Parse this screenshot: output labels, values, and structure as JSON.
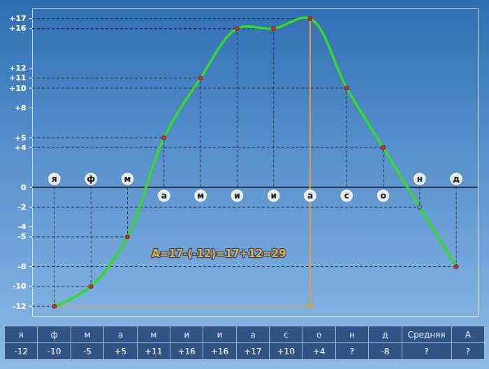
{
  "chart_data": {
    "type": "line",
    "categories": [
      "я",
      "ф",
      "м",
      "а",
      "м",
      "и",
      "и",
      "а",
      "с",
      "о",
      "н",
      "д"
    ],
    "series": [
      {
        "color": "#33dd22",
        "marker": "circle",
        "line_style": "solid",
        "colors": [
          "#d0312d",
          "#d0312d",
          "#d0312d",
          "#d0312d",
          "#d0312d",
          "#d0312d",
          "#d0312d",
          "#d0312d",
          "#d0312d",
          "#d0312d",
          "#3fa9e0",
          "#d0312d"
        ],
        "values": [
          -12,
          -10,
          -5,
          5,
          11,
          16,
          16,
          17,
          10,
          4,
          -2,
          -8
        ]
      }
    ],
    "ylim": [
      -13,
      18
    ],
    "yticks": [
      {
        "value": 17,
        "label": "+17"
      },
      {
        "value": 16,
        "label": "+16"
      },
      {
        "value": 12,
        "label": "+12"
      },
      {
        "value": 11,
        "label": "+11"
      },
      {
        "value": 10,
        "label": "+10"
      },
      {
        "value": 8,
        "label": "+8"
      },
      {
        "value": 5,
        "label": "+5"
      },
      {
        "value": 4,
        "label": "+4"
      },
      0,
      -2,
      -4,
      -5,
      -8,
      -10,
      -12
    ],
    "grid": false,
    "annotations": [
      {
        "text": "A=17-(-12)=17+12=29",
        "x": 4.5,
        "y": -6.7
      }
    ]
  },
  "table": {
    "header": [
      "я",
      "ф",
      "м",
      "а",
      "м",
      "и",
      "и",
      "а",
      "с",
      "о",
      "н",
      "д",
      "Средняя",
      "А"
    ],
    "rows": [
      [
        "-12",
        "-10",
        "-5",
        "+5",
        "+11",
        "+16",
        "+16",
        "+17",
        "+10",
        "+4",
        "?",
        "-8",
        "?",
        "?"
      ]
    ]
  }
}
